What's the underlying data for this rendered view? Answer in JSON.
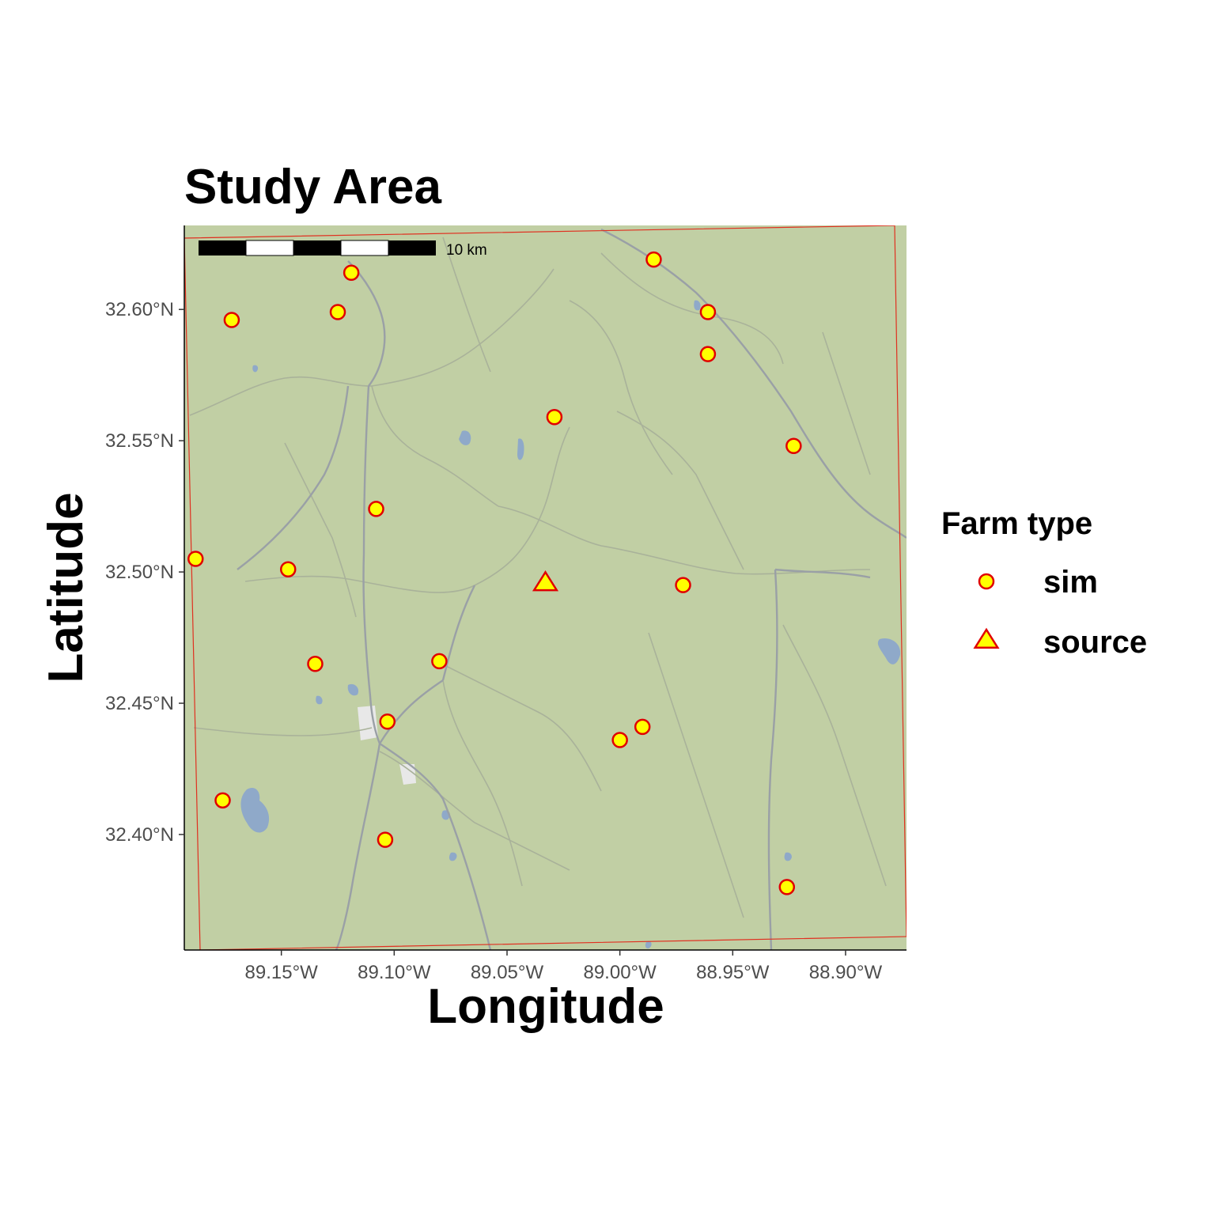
{
  "chart_data": {
    "type": "scatter",
    "title": "Study Area",
    "xlabel": "Longitude",
    "ylabel": "Latitude",
    "xlim": [
      -89.193,
      -88.873
    ],
    "ylim": [
      32.356,
      32.632
    ],
    "x_ticks": [
      {
        "value": -89.15,
        "label": "89.15°W"
      },
      {
        "value": -89.1,
        "label": "89.10°W"
      },
      {
        "value": -89.05,
        "label": "89.05°W"
      },
      {
        "value": -89.0,
        "label": "89.00°W"
      },
      {
        "value": -88.95,
        "label": "88.95°W"
      },
      {
        "value": -88.9,
        "label": "88.90°W"
      }
    ],
    "y_ticks": [
      {
        "value": 32.4,
        "label": "32.40°N"
      },
      {
        "value": 32.45,
        "label": "32.45°N"
      },
      {
        "value": 32.5,
        "label": "32.50°N"
      },
      {
        "value": 32.55,
        "label": "32.55°N"
      },
      {
        "value": 32.6,
        "label": "32.60°N"
      }
    ],
    "legend": {
      "title": "Farm type",
      "position": "right",
      "items": [
        {
          "label": "sim",
          "shape": "circle"
        },
        {
          "label": "source",
          "shape": "triangle"
        }
      ]
    },
    "marker_fill": "#FFFF00",
    "marker_stroke": "#E00000",
    "series": [
      {
        "name": "sim",
        "points": [
          {
            "x": -89.172,
            "y": 32.596
          },
          {
            "x": -89.125,
            "y": 32.599
          },
          {
            "x": -89.119,
            "y": 32.614
          },
          {
            "x": -88.985,
            "y": 32.619
          },
          {
            "x": -88.961,
            "y": 32.599
          },
          {
            "x": -88.961,
            "y": 32.583
          },
          {
            "x": -89.029,
            "y": 32.559
          },
          {
            "x": -88.923,
            "y": 32.548
          },
          {
            "x": -89.108,
            "y": 32.524
          },
          {
            "x": -89.188,
            "y": 32.505
          },
          {
            "x": -89.147,
            "y": 32.501
          },
          {
            "x": -88.972,
            "y": 32.495
          },
          {
            "x": -89.135,
            "y": 32.465
          },
          {
            "x": -89.08,
            "y": 32.466
          },
          {
            "x": -89.103,
            "y": 32.443
          },
          {
            "x": -88.99,
            "y": 32.441
          },
          {
            "x": -89.0,
            "y": 32.436
          },
          {
            "x": -89.176,
            "y": 32.413
          },
          {
            "x": -89.104,
            "y": 32.398
          },
          {
            "x": -88.926,
            "y": 32.38
          }
        ]
      },
      {
        "name": "source",
        "points": [
          {
            "x": -89.033,
            "y": 32.496
          }
        ]
      }
    ],
    "scale_bar": {
      "label": "10 km"
    }
  },
  "map_colors": {
    "land": "#C1CFA4",
    "road": "#9AA0A6",
    "minor_road": "#A9B29A",
    "water": "#8FA9C9",
    "urban": "#E8E8E8",
    "boundary": "#E03020"
  }
}
